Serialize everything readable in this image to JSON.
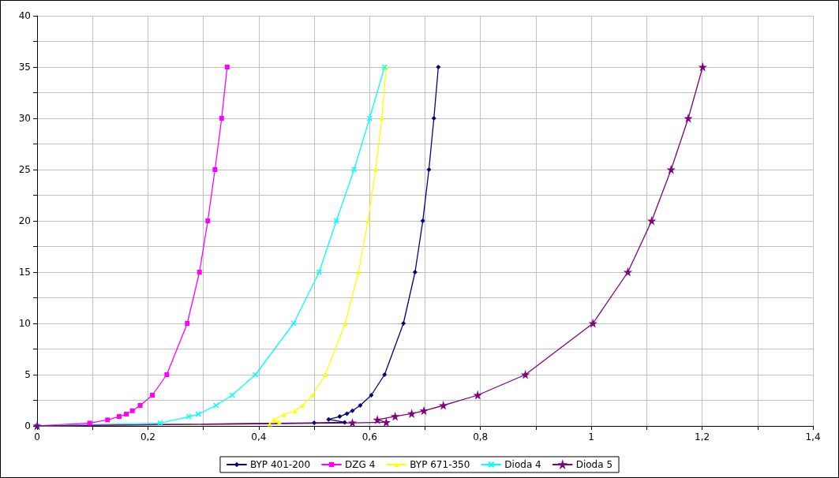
{
  "chart_data": {
    "type": "line",
    "grid": true,
    "legend": "bottom",
    "xlim": [
      0,
      1.4
    ],
    "xticks": [
      0,
      {
        "value": 0.1,
        "label": null
      },
      {
        "value": 0.2,
        "label": "0,2"
      },
      {
        "value": 0.3,
        "label": null
      },
      {
        "value": 0.4,
        "label": "0,4"
      },
      {
        "value": 0.5,
        "label": null
      },
      {
        "value": 0.6,
        "label": "0,6"
      },
      {
        "value": 0.7,
        "label": null
      },
      {
        "value": 0.8,
        "label": "0,8"
      },
      {
        "value": 0.9,
        "label": null
      },
      1,
      {
        "value": 1.1,
        "label": null
      },
      {
        "value": 1.2,
        "label": "1,2"
      },
      {
        "value": 1.3,
        "label": null
      },
      {
        "value": 1.4,
        "label": "1,4"
      }
    ],
    "ylim": [
      0,
      40
    ],
    "yticks": [
      0,
      {
        "value": 2.5,
        "label": null
      },
      5,
      {
        "value": 7.5,
        "label": null
      },
      10,
      {
        "value": 12.5,
        "label": null
      },
      15,
      {
        "value": 17.5,
        "label": null
      },
      20,
      {
        "value": 22.5,
        "label": null
      },
      25,
      {
        "value": 27.5,
        "label": null
      },
      30,
      {
        "value": 32.5,
        "label": null
      },
      35,
      {
        "value": 37.5,
        "label": null
      },
      40
    ],
    "series": [
      {
        "name": "BYP 401-200",
        "color": "#000080",
        "marker": "diamond",
        "x": [
          0,
          0.5,
          0.555,
          0.526,
          0.546,
          0.559,
          0.569,
          0.583,
          0.603,
          0.627,
          0.661,
          0.682,
          0.696,
          0.707,
          0.716,
          0.724
        ],
        "values": [
          0,
          0.3,
          0.35,
          0.64,
          0.92,
          1.2,
          1.48,
          2,
          3,
          5,
          10,
          15,
          20,
          25,
          30,
          35
        ]
      },
      {
        "name": "DZG 4",
        "color": "#ff00ff",
        "marker": "square",
        "x": [
          0,
          0.095,
          0.127,
          0.148,
          0.161,
          0.172,
          0.186,
          0.208,
          0.234,
          0.271,
          0.293,
          0.308,
          0.321,
          0.333,
          0.343
        ],
        "values": [
          0,
          0.28,
          0.59,
          0.92,
          1.15,
          1.48,
          2,
          3,
          5,
          10,
          15,
          20,
          25,
          30,
          35
        ]
      },
      {
        "name": "BYP 671-350",
        "color": "#ffff00",
        "marker": "triangle",
        "x": [
          0,
          0.42,
          0.437,
          0.427,
          0.445,
          0.465,
          0.479,
          0.497,
          0.52,
          0.556,
          0.58,
          0.597,
          0.611,
          0.622,
          0.63
        ],
        "values": [
          0,
          0.2,
          0.4,
          0.6,
          1.1,
          1.45,
          2,
          3,
          5,
          10,
          15,
          20,
          25,
          30,
          35
        ]
      },
      {
        "name": "Dioda 4",
        "color": "#00ffff",
        "marker": "cross",
        "x": [
          0,
          0.222,
          0.274,
          0.291,
          0.323,
          0.352,
          0.394,
          0.463,
          0.509,
          0.54,
          0.572,
          0.6,
          0.627
        ],
        "values": [
          0,
          0.28,
          0.9,
          1.15,
          2,
          3,
          5,
          10,
          15,
          20,
          25,
          30,
          35
        ]
      },
      {
        "name": "Dioda 5",
        "color": "#800080",
        "marker": "star",
        "x": [
          0,
          0.569,
          0.63,
          0.614,
          0.646,
          0.676,
          0.698,
          0.733,
          0.795,
          0.881,
          1.003,
          1.066,
          1.109,
          1.144,
          1.175,
          1.201
        ],
        "values": [
          0,
          0.3,
          0.35,
          0.6,
          0.93,
          1.2,
          1.48,
          2,
          3,
          5,
          10,
          15,
          20,
          25,
          30,
          35
        ]
      }
    ]
  }
}
